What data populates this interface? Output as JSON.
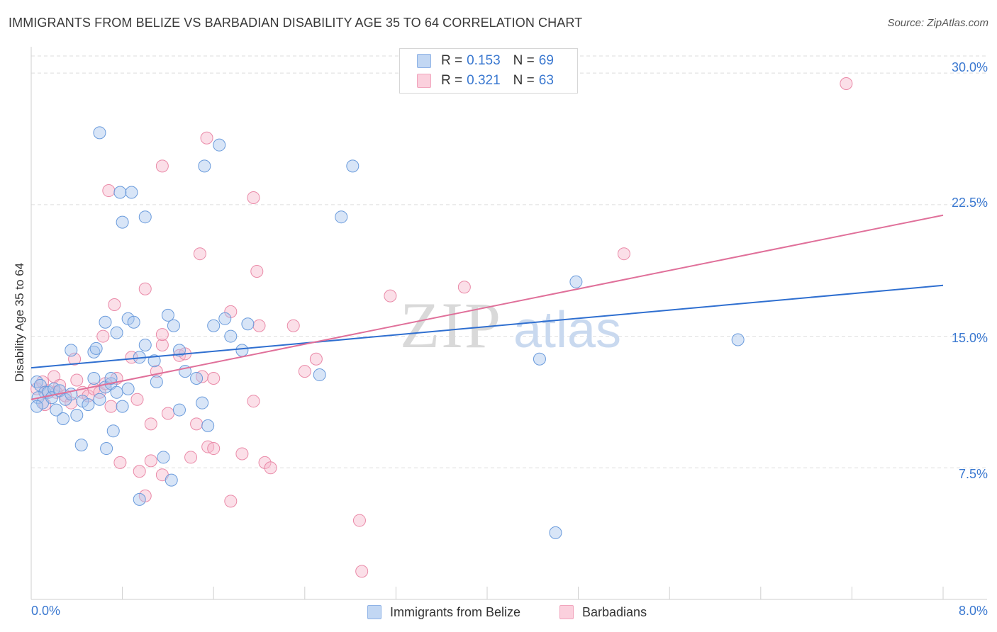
{
  "header": {
    "title": "IMMIGRANTS FROM BELIZE VS BARBADIAN DISABILITY AGE 35 TO 64 CORRELATION CHART",
    "source": "Source: ZipAtlas.com"
  },
  "legend": {
    "rows": [
      {
        "r_label": "R =",
        "r_value": "0.153",
        "n_label": "N =",
        "n_value": "69",
        "color": "#a9c6ee"
      },
      {
        "r_label": "R =",
        "r_value": "0.321",
        "n_label": "N =",
        "n_value": "63",
        "color": "#f6b9cb"
      }
    ]
  },
  "bottom_legend": {
    "series1": "Immigrants from Belize",
    "series2": "Barbadians"
  },
  "axes": {
    "ylabel": "Disability Age 35 to 64",
    "x_min_label": "0.0%",
    "x_max_label": "8.0%",
    "y_ticks": [
      "7.5%",
      "15.0%",
      "22.5%",
      "30.0%"
    ]
  },
  "colors": {
    "blue_fill": "#a9c6ee",
    "blue_stroke": "#6a9bdc",
    "blue_line": "#2f6fd0",
    "pink_fill": "#f6b9cb",
    "pink_stroke": "#ea8aa8",
    "pink_line": "#e0709a",
    "grid": "#dedede",
    "tick_label": "#3a78d0"
  },
  "watermark": {
    "zip": "ZIP",
    "atlas": "atlas"
  },
  "chart_data": {
    "type": "scatter",
    "xlabel": "",
    "ylabel": "Disability Age 35 to 64",
    "xlim": [
      0,
      8.0
    ],
    "ylim": [
      0,
      31.5
    ],
    "x_unit": "%",
    "y_unit": "%",
    "grid": true,
    "legend_placement": "top-center",
    "series": [
      {
        "name": "Immigrants from Belize",
        "R": 0.153,
        "N": 69,
        "trend": {
          "x": [
            0,
            8.0
          ],
          "y": [
            13.2,
            17.9
          ]
        },
        "points": [
          [
            0.05,
            12.4
          ],
          [
            0.08,
            12.2
          ],
          [
            0.12,
            11.8
          ],
          [
            0.06,
            11.5
          ],
          [
            0.1,
            11.2
          ],
          [
            0.05,
            11.0
          ],
          [
            0.15,
            11.8
          ],
          [
            0.2,
            12.0
          ],
          [
            0.18,
            11.5
          ],
          [
            0.25,
            11.9
          ],
          [
            0.3,
            11.4
          ],
          [
            0.35,
            11.7
          ],
          [
            0.22,
            10.8
          ],
          [
            0.28,
            10.3
          ],
          [
            0.4,
            10.5
          ],
          [
            0.45,
            11.3
          ],
          [
            0.5,
            11.1
          ],
          [
            0.55,
            12.6
          ],
          [
            0.6,
            11.4
          ],
          [
            0.65,
            12.1
          ],
          [
            0.7,
            12.3
          ],
          [
            0.75,
            11.8
          ],
          [
            0.8,
            11.0
          ],
          [
            0.85,
            12.0
          ],
          [
            0.35,
            14.2
          ],
          [
            0.55,
            14.1
          ],
          [
            0.57,
            14.3
          ],
          [
            0.65,
            15.8
          ],
          [
            0.7,
            12.6
          ],
          [
            0.75,
            15.2
          ],
          [
            0.85,
            16.0
          ],
          [
            0.9,
            15.8
          ],
          [
            0.95,
            13.8
          ],
          [
            1.0,
            14.5
          ],
          [
            1.08,
            13.6
          ],
          [
            1.1,
            12.4
          ],
          [
            1.2,
            16.2
          ],
          [
            1.25,
            15.6
          ],
          [
            1.3,
            14.2
          ],
          [
            1.35,
            13.0
          ],
          [
            1.45,
            12.6
          ],
          [
            1.5,
            11.2
          ],
          [
            1.55,
            9.9
          ],
          [
            1.6,
            15.6
          ],
          [
            1.7,
            16.0
          ],
          [
            1.75,
            15.0
          ],
          [
            1.85,
            14.2
          ],
          [
            1.9,
            15.7
          ],
          [
            0.6,
            26.6
          ],
          [
            0.78,
            23.2
          ],
          [
            0.88,
            23.2
          ],
          [
            0.8,
            21.5
          ],
          [
            1.0,
            21.8
          ],
          [
            1.52,
            24.7
          ],
          [
            1.65,
            25.9
          ],
          [
            2.82,
            24.7
          ],
          [
            2.72,
            21.8
          ],
          [
            0.44,
            8.8
          ],
          [
            0.66,
            8.6
          ],
          [
            0.72,
            9.6
          ],
          [
            0.95,
            5.7
          ],
          [
            1.16,
            8.1
          ],
          [
            1.23,
            6.8
          ],
          [
            1.3,
            10.8
          ],
          [
            2.53,
            12.8
          ],
          [
            4.78,
            18.1
          ],
          [
            4.46,
            13.7
          ],
          [
            6.2,
            14.8
          ],
          [
            4.6,
            3.8
          ]
        ]
      },
      {
        "name": "Barbadians",
        "R": 0.321,
        "N": 63,
        "trend": {
          "x": [
            0,
            8.0
          ],
          "y": [
            11.4,
            21.9
          ]
        },
        "points": [
          [
            0.05,
            12.0
          ],
          [
            0.1,
            12.4
          ],
          [
            0.15,
            11.9
          ],
          [
            0.2,
            12.7
          ],
          [
            0.25,
            12.2
          ],
          [
            0.3,
            11.6
          ],
          [
            0.35,
            11.2
          ],
          [
            0.4,
            12.5
          ],
          [
            0.45,
            11.8
          ],
          [
            0.5,
            11.6
          ],
          [
            0.55,
            12.0
          ],
          [
            0.6,
            11.8
          ],
          [
            0.65,
            12.3
          ],
          [
            0.7,
            11.0
          ],
          [
            0.75,
            12.6
          ],
          [
            0.12,
            11.1
          ],
          [
            0.22,
            11.8
          ],
          [
            0.38,
            13.7
          ],
          [
            0.63,
            15.0
          ],
          [
            0.73,
            16.8
          ],
          [
            0.88,
            13.8
          ],
          [
            0.93,
            11.4
          ],
          [
            1.05,
            10.0
          ],
          [
            1.1,
            13.0
          ],
          [
            1.15,
            14.5
          ],
          [
            1.2,
            10.6
          ],
          [
            1.3,
            13.9
          ],
          [
            1.35,
            14.0
          ],
          [
            1.45,
            10.0
          ],
          [
            1.5,
            12.7
          ],
          [
            1.55,
            8.7
          ],
          [
            1.6,
            12.6
          ],
          [
            1.75,
            16.4
          ],
          [
            1.85,
            8.3
          ],
          [
            1.95,
            11.3
          ],
          [
            2.05,
            7.8
          ],
          [
            2.1,
            7.5
          ],
          [
            1.05,
            7.9
          ],
          [
            1.15,
            7.1
          ],
          [
            0.78,
            7.8
          ],
          [
            0.95,
            7.3
          ],
          [
            1.0,
            5.9
          ],
          [
            1.4,
            8.1
          ],
          [
            1.6,
            8.6
          ],
          [
            1.75,
            5.6
          ],
          [
            1.48,
            19.7
          ],
          [
            1.54,
            26.3
          ],
          [
            1.15,
            24.7
          ],
          [
            0.68,
            23.3
          ],
          [
            1.0,
            17.7
          ],
          [
            1.98,
            18.7
          ],
          [
            2.0,
            15.6
          ],
          [
            2.3,
            15.6
          ],
          [
            2.4,
            13.0
          ],
          [
            2.5,
            13.7
          ],
          [
            3.15,
            17.3
          ],
          [
            3.8,
            17.8
          ],
          [
            5.2,
            19.7
          ],
          [
            1.95,
            22.9
          ],
          [
            7.15,
            29.4
          ],
          [
            2.88,
            4.5
          ],
          [
            2.9,
            1.6
          ],
          [
            1.15,
            15.1
          ]
        ]
      }
    ]
  }
}
